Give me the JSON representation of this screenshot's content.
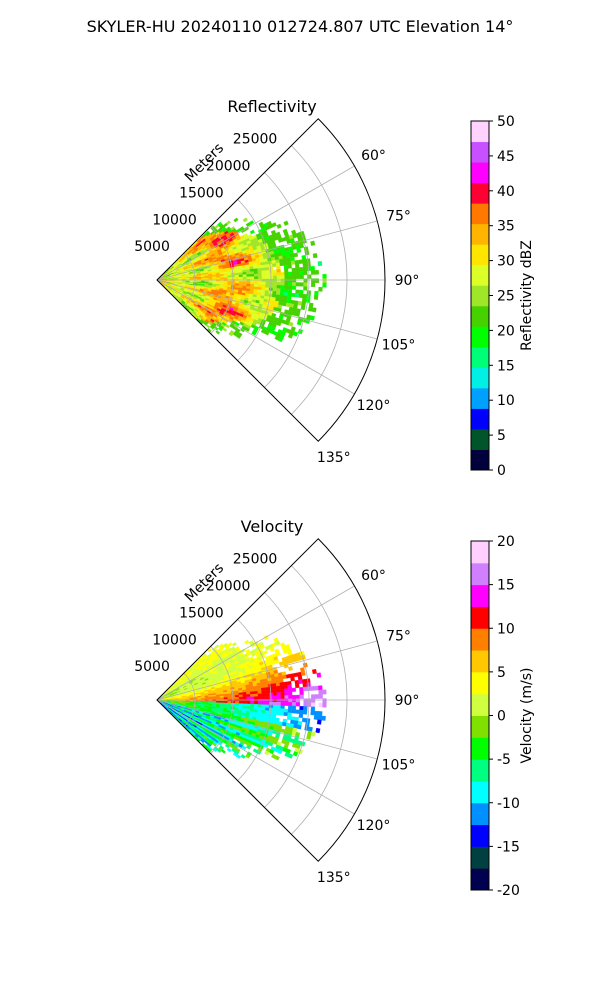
{
  "figure_title": "SKYLER-HU  20240110  012724.807 UTC Elevation 14°",
  "chart_data": [
    {
      "type": "heatmap",
      "projection": "polar-sector",
      "title": "Reflectivity",
      "radial_axis_label": "Meters",
      "radial_ticks": [
        "5000",
        "10000",
        "15000",
        "20000",
        "25000"
      ],
      "radial_tick_values": [
        5000,
        10000,
        15000,
        20000,
        25000
      ],
      "rlim": [
        0,
        30000
      ],
      "azimuth_ticks": [
        "60°",
        "75°",
        "90°",
        "105°",
        "120°",
        "135°"
      ],
      "azimuth_tick_values": [
        60,
        75,
        90,
        105,
        120,
        135
      ],
      "theta_range_deg": [
        45,
        135
      ],
      "grid": true,
      "colorbar": {
        "label": "Reflectivity dBZ",
        "ticks": [
          "0",
          "5",
          "10",
          "15",
          "20",
          "25",
          "30",
          "35",
          "40",
          "45",
          "50"
        ],
        "range": [
          0,
          50
        ],
        "colors": [
          "#00003c",
          "#00552a",
          "#0000ff",
          "#00a0ff",
          "#00f0e6",
          "#00ff78",
          "#00ff00",
          "#46d200",
          "#a0e628",
          "#dcff28",
          "#ffe600",
          "#ffb400",
          "#ff7800",
          "#ff0033",
          "#ff00ff",
          "#c850ff",
          "#ffd2ff"
        ]
      },
      "echo": {
        "max_range_m": 22000,
        "dominant_dbz": "25-35",
        "core_dbz": 36,
        "edge_dbz": 15
      }
    },
    {
      "type": "heatmap",
      "projection": "polar-sector",
      "title": "Velocity",
      "radial_axis_label": "Meters",
      "radial_ticks": [
        "5000",
        "10000",
        "15000",
        "20000",
        "25000"
      ],
      "radial_tick_values": [
        5000,
        10000,
        15000,
        20000,
        25000
      ],
      "rlim": [
        0,
        30000
      ],
      "azimuth_ticks": [
        "60°",
        "75°",
        "90°",
        "105°",
        "120°",
        "135°"
      ],
      "azimuth_tick_values": [
        60,
        75,
        90,
        105,
        120,
        135
      ],
      "theta_range_deg": [
        45,
        135
      ],
      "grid": true,
      "colorbar": {
        "label": "Velocity (m/s)",
        "ticks": [
          "-20",
          "-15",
          "-10",
          "-5",
          "0",
          "5",
          "10",
          "15",
          "20"
        ],
        "range": [
          -20,
          20
        ],
        "colors": [
          "#000050",
          "#004040",
          "#0000ff",
          "#0090ff",
          "#00ffff",
          "#00ff80",
          "#00ff00",
          "#80e000",
          "#d0ff40",
          "#ffff00",
          "#ffc800",
          "#ff8000",
          "#ff0000",
          "#ff00ff",
          "#d080ff",
          "#ffd0ff"
        ]
      },
      "echo": {
        "max_range_m": 22000,
        "approaching_ms": -10,
        "receding_ms": 12
      }
    }
  ]
}
